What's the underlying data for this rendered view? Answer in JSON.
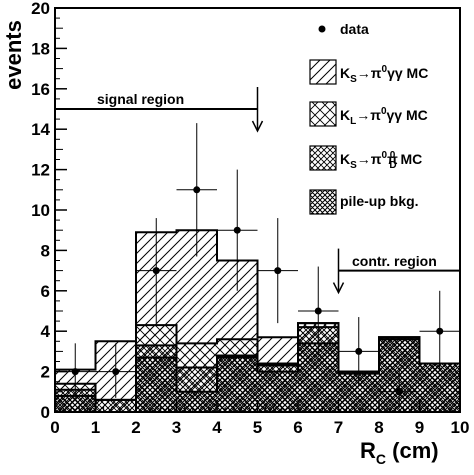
{
  "chart_data": {
    "type": "bar",
    "xlabel": "R",
    "xlabel_sub": "C",
    "xlabel_unit": " (cm)",
    "ylabel": "events",
    "xlim": [
      0,
      10
    ],
    "ylim": [
      0,
      20
    ],
    "x_ticks": [
      "0",
      "1",
      "2",
      "3",
      "4",
      "5",
      "6",
      "7",
      "8",
      "9",
      "10"
    ],
    "y_ticks": [
      "0",
      "2",
      "4",
      "6",
      "8",
      "10",
      "12",
      "14",
      "16",
      "18",
      "20"
    ],
    "bin_edges": [
      0,
      1,
      2,
      3,
      4,
      5,
      6,
      7,
      8,
      9,
      10
    ],
    "series": [
      {
        "key": "pileup",
        "values": [
          0.8,
          0.0,
          2.7,
          1.0,
          2.7,
          2.0,
          3.4,
          1.9,
          3.6,
          2.4
        ]
      },
      {
        "key": "ks_pipid",
        "values": [
          1.1,
          0.6,
          3.3,
          2.2,
          2.8,
          2.3,
          4.2,
          2.0,
          3.7,
          2.4
        ]
      },
      {
        "key": "kl_pigg",
        "values": [
          1.4,
          0.6,
          4.3,
          3.4,
          3.6,
          2.4,
          4.4,
          2.0,
          3.7,
          2.4
        ]
      },
      {
        "key": "ks_pigg",
        "values": [
          2.1,
          3.5,
          8.9,
          9.0,
          7.5,
          3.7,
          4.4,
          2.0,
          3.7,
          2.4
        ]
      }
    ],
    "data_points": [
      {
        "x": 0.5,
        "y": 2,
        "err_lo": 1.3,
        "err_hi": 1.4,
        "xerr": 0.5
      },
      {
        "x": 1.5,
        "y": 2,
        "err_lo": 1.3,
        "err_hi": 1.4,
        "xerr": 0.5
      },
      {
        "x": 2.5,
        "y": 7,
        "err_lo": 2.6,
        "err_hi": 2.6,
        "xerr": 0.5
      },
      {
        "x": 3.5,
        "y": 11,
        "err_lo": 3.3,
        "err_hi": 3.3,
        "xerr": 0.5
      },
      {
        "x": 4.5,
        "y": 9,
        "err_lo": 3.0,
        "err_hi": 3.0,
        "xerr": 0.5
      },
      {
        "x": 5.5,
        "y": 7,
        "err_lo": 2.6,
        "err_hi": 2.6,
        "xerr": 0.5
      },
      {
        "x": 6.5,
        "y": 5,
        "err_lo": 2.2,
        "err_hi": 2.2,
        "xerr": 0.5
      },
      {
        "x": 7.5,
        "y": 3,
        "err_lo": 1.7,
        "err_hi": 1.7,
        "xerr": 0.5
      },
      {
        "x": 8.5,
        "y": 1,
        "err_lo": 0.8,
        "err_hi": 1.2,
        "xerr": 0.5
      },
      {
        "x": 9.5,
        "y": 4,
        "err_lo": 2.0,
        "err_hi": 2.0,
        "xerr": 0.5
      }
    ],
    "legend": {
      "placement": "top-right",
      "data": "data",
      "ks_pigg": {
        "main": "K",
        "sub1": "S",
        "arrow": "→π",
        "sup": "0",
        "rest": "γγ MC"
      },
      "kl_pigg": {
        "main": "K",
        "sub1": "L",
        "arrow": "→π",
        "sup": "0",
        "rest": "γγ MC"
      },
      "ks_pipid": {
        "main": "K",
        "sub1": "S",
        "arrow": "→π",
        "sup": "0",
        "mid": "π",
        "sup2": "0",
        "sub2": "D",
        "rest": " MC"
      },
      "pileup": "pile-up bkg."
    },
    "annotations": {
      "signal_region": {
        "label": "signal region",
        "x_from": 0,
        "x_to": 5,
        "y": 15
      },
      "control_region": {
        "label": "contr. region",
        "x_from": 7,
        "x_to": 10,
        "y": 7
      }
    }
  }
}
